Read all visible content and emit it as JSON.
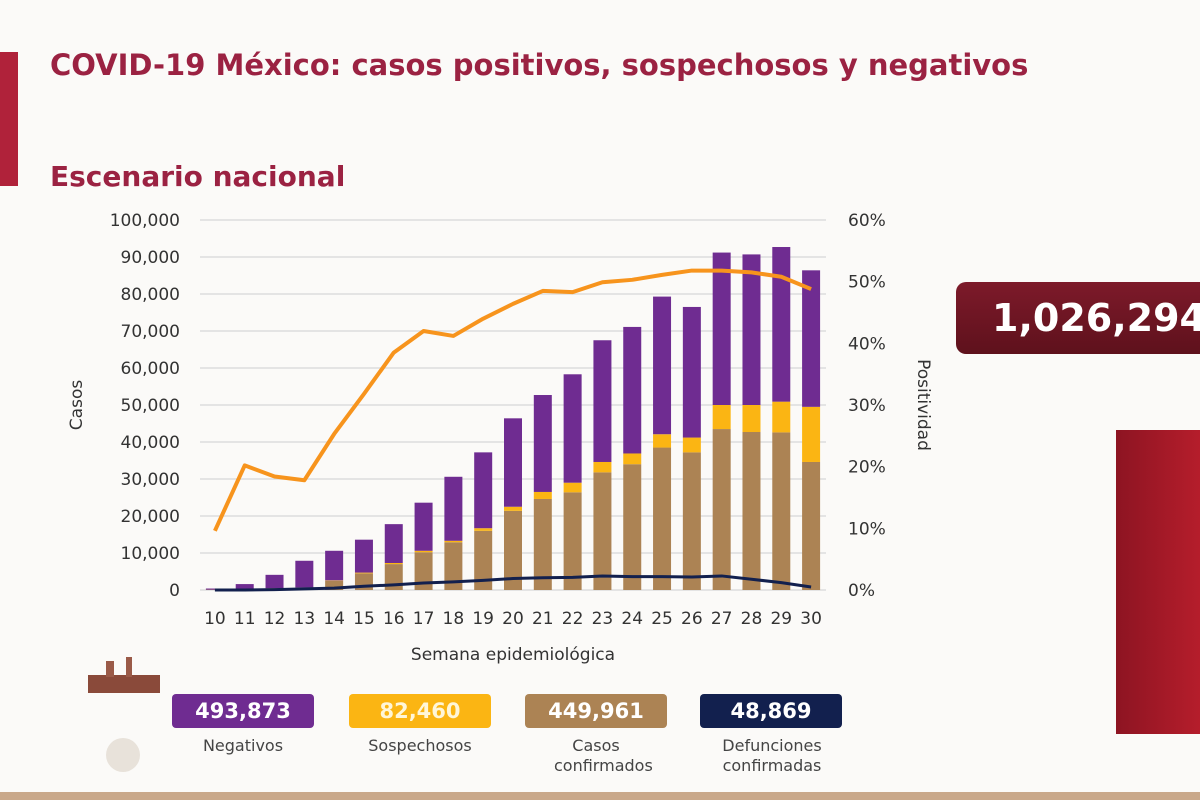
{
  "header": {
    "title": "COVID-19 México: casos positivos, sospechosos y negativos",
    "subtitle": "Escenario nacional"
  },
  "total": {
    "value": "1,026,294"
  },
  "legend": [
    {
      "value": "493,873",
      "label": "Negativos",
      "color": "#6f2c91"
    },
    {
      "value": "82,460",
      "label": "Sospechosos",
      "color": "#fbb513"
    },
    {
      "value": "449,961",
      "label": "Casos confirmados",
      "color": "#ac8354"
    },
    {
      "value": "48,869",
      "label": "Defunciones confirmadas",
      "color": "#12204e"
    }
  ],
  "chart_data": {
    "type": "bar",
    "stacked": true,
    "xlabel": "Semana epidemiológica",
    "ylabel": "Casos",
    "y2label": "Positividad",
    "ylim": [
      0,
      100000
    ],
    "y2lim": [
      0,
      60
    ],
    "yticks": [
      "0",
      "10,000",
      "20,000",
      "30,000",
      "40,000",
      "50,000",
      "60,000",
      "70,000",
      "80,000",
      "90,000",
      "100,000"
    ],
    "y2ticks": [
      "0%",
      "10%",
      "20%",
      "30%",
      "40%",
      "50%",
      "60%"
    ],
    "grid": true,
    "categories": [
      "10",
      "11",
      "12",
      "13",
      "14",
      "15",
      "16",
      "17",
      "18",
      "19",
      "20",
      "21",
      "22",
      "23",
      "24",
      "25",
      "26",
      "27",
      "28",
      "29",
      "30"
    ],
    "series": [
      {
        "name": "Casos confirmados",
        "type": "bar",
        "color": "#ac8354",
        "values": [
          100,
          300,
          500,
          700,
          2500,
          4500,
          7000,
          10200,
          12900,
          16000,
          21400,
          24600,
          26400,
          31800,
          34000,
          38500,
          37200,
          43500,
          42700,
          42600,
          34600
        ]
      },
      {
        "name": "Sospechosos",
        "type": "bar",
        "color": "#fbb513",
        "values": [
          0,
          0,
          0,
          0,
          100,
          200,
          300,
          400,
          400,
          700,
          1100,
          1900,
          2600,
          2800,
          2900,
          3600,
          4000,
          6500,
          7300,
          8300,
          14900
        ]
      },
      {
        "name": "Negativos",
        "type": "bar",
        "color": "#6f2c91",
        "values": [
          300,
          1300,
          3600,
          7200,
          8000,
          8900,
          10500,
          13000,
          17300,
          20500,
          23900,
          26200,
          29300,
          32900,
          34200,
          37200,
          35300,
          41200,
          40700,
          41800,
          36900
        ]
      },
      {
        "name": "Defunciones confirmadas",
        "type": "line",
        "axis": "left",
        "color": "#12204e",
        "values": [
          0,
          0,
          100,
          300,
          500,
          1000,
          1400,
          1900,
          2200,
          2600,
          3100,
          3300,
          3400,
          3800,
          3600,
          3600,
          3500,
          3800,
          2900,
          2000,
          800
        ]
      },
      {
        "name": "Positividad",
        "type": "line",
        "axis": "right",
        "color": "#f7941d",
        "values": [
          9.6,
          20.2,
          18.4,
          17.8,
          25.3,
          31.8,
          38.5,
          42,
          41.2,
          44,
          46.4,
          48.5,
          48.3,
          49.9,
          50.3,
          51.1,
          51.8,
          51.8,
          51.5,
          50.8,
          48.8
        ]
      }
    ]
  }
}
